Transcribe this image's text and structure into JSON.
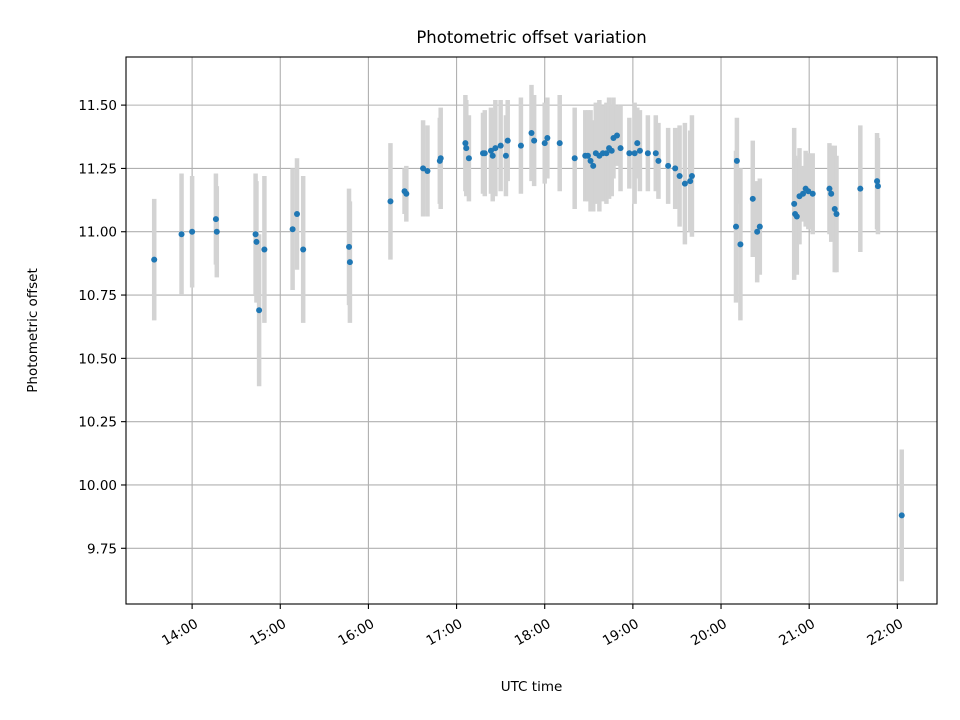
{
  "chart_data": {
    "type": "scatter",
    "title": "Photometric offset variation",
    "xlabel": "UTC time",
    "ylabel": "Photometric offset",
    "x_unit": "hours UTC",
    "xlim": [
      13.25,
      22.45
    ],
    "ylim": [
      9.53,
      11.69
    ],
    "x_ticks": [
      {
        "value": 14,
        "label": "14:00"
      },
      {
        "value": 15,
        "label": "15:00"
      },
      {
        "value": 16,
        "label": "16:00"
      },
      {
        "value": 17,
        "label": "17:00"
      },
      {
        "value": 18,
        "label": "18:00"
      },
      {
        "value": 19,
        "label": "19:00"
      },
      {
        "value": 20,
        "label": "20:00"
      },
      {
        "value": 21,
        "label": "21:00"
      },
      {
        "value": 22,
        "label": "22:00"
      }
    ],
    "y_ticks": [
      {
        "value": 9.75,
        "label": "9.75"
      },
      {
        "value": 10.0,
        "label": "10.00"
      },
      {
        "value": 10.25,
        "label": "10.25"
      },
      {
        "value": 10.5,
        "label": "10.50"
      },
      {
        "value": 10.75,
        "label": "10.75"
      },
      {
        "value": 11.0,
        "label": "11.00"
      },
      {
        "value": 11.25,
        "label": "11.25"
      },
      {
        "value": 11.5,
        "label": "11.50"
      }
    ],
    "grid": true,
    "colors": {
      "points": "#1f77b4",
      "errorbars": "#d3d3d3"
    },
    "series": [
      {
        "x": [
          13.57,
          13.88,
          14.0,
          14.27,
          14.28,
          14.72,
          14.73,
          14.76,
          14.82,
          15.14,
          15.19,
          15.26,
          15.78,
          15.79,
          16.25,
          16.41,
          16.43,
          16.62,
          16.67,
          16.81,
          16.82,
          17.1,
          17.11,
          17.14,
          17.3,
          17.32,
          17.39,
          17.41,
          17.44,
          17.5,
          17.56,
          17.58,
          17.73,
          17.85,
          17.88,
          18.0,
          18.03,
          18.17,
          18.34,
          18.46,
          18.49,
          18.52,
          18.55,
          18.58,
          18.62,
          18.66,
          18.7,
          18.73,
          18.76,
          18.78,
          18.82,
          18.86,
          18.96,
          19.02,
          19.05,
          19.08,
          19.17,
          19.26,
          19.29,
          19.4,
          19.48,
          19.53,
          19.59,
          19.65,
          19.67,
          20.17,
          20.18,
          20.22,
          20.36,
          20.41,
          20.44,
          20.83,
          20.84,
          20.86,
          20.89,
          20.93,
          20.96,
          20.99,
          21.04,
          21.23,
          21.25,
          21.29,
          21.31,
          21.58,
          21.77,
          21.78,
          22.05
        ],
        "y": [
          10.89,
          10.99,
          11.0,
          11.05,
          11.0,
          10.99,
          10.96,
          10.69,
          10.93,
          11.01,
          11.07,
          10.93,
          10.94,
          10.88,
          11.12,
          11.16,
          11.15,
          11.25,
          11.24,
          11.28,
          11.29,
          11.35,
          11.33,
          11.29,
          11.31,
          11.31,
          11.32,
          11.3,
          11.33,
          11.34,
          11.3,
          11.36,
          11.34,
          11.39,
          11.36,
          11.35,
          11.37,
          11.35,
          11.29,
          11.3,
          11.3,
          11.28,
          11.26,
          11.31,
          11.3,
          11.31,
          11.31,
          11.33,
          11.32,
          11.37,
          11.38,
          11.33,
          11.31,
          11.31,
          11.35,
          11.32,
          11.31,
          11.31,
          11.28,
          11.26,
          11.25,
          11.22,
          11.19,
          11.2,
          11.22,
          11.02,
          11.28,
          10.95,
          11.13,
          11.0,
          11.02,
          11.11,
          11.07,
          11.06,
          11.14,
          11.15,
          11.17,
          11.16,
          11.15,
          11.17,
          11.15,
          11.09,
          11.07,
          11.17,
          11.2,
          11.18,
          9.88
        ],
        "err": [
          0.24,
          0.24,
          0.22,
          0.18,
          0.18,
          0.24,
          0.24,
          0.3,
          0.29,
          0.24,
          0.22,
          0.29,
          0.23,
          0.24,
          0.23,
          0.09,
          0.11,
          0.19,
          0.18,
          0.17,
          0.2,
          0.19,
          0.19,
          0.17,
          0.16,
          0.17,
          0.17,
          0.18,
          0.19,
          0.18,
          0.16,
          0.16,
          0.19,
          0.19,
          0.18,
          0.16,
          0.16,
          0.19,
          0.2,
          0.18,
          0.18,
          0.2,
          0.18,
          0.2,
          0.22,
          0.19,
          0.2,
          0.2,
          0.18,
          0.16,
          0.12,
          0.17,
          0.14,
          0.2,
          0.14,
          0.16,
          0.15,
          0.15,
          0.15,
          0.15,
          0.16,
          0.2,
          0.24,
          0.2,
          0.24,
          0.3,
          0.17,
          0.3,
          0.23,
          0.2,
          0.19,
          0.3,
          0.23,
          0.23,
          0.19,
          0.11,
          0.15,
          0.15,
          0.16,
          0.18,
          0.19,
          0.25,
          0.23,
          0.25,
          0.19,
          0.19,
          0.26
        ]
      }
    ]
  }
}
